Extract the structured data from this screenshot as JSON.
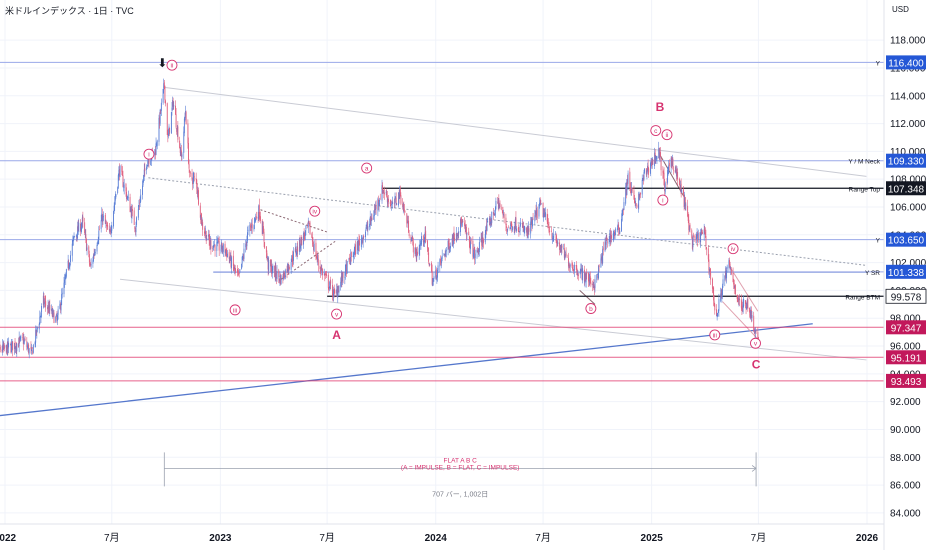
{
  "header": {
    "title": "米ドルインデックス · 1日 · TVC",
    "currency": "USD"
  },
  "colors": {
    "candle_up": "#5b7fd6",
    "candle_down": "#e0607e",
    "wave": "#d63370",
    "hline": "#9aa8e8",
    "trend": "#5577cc",
    "badge_blue": "#2457d6",
    "badge_black": "#131722",
    "badge_red": "#c2185b"
  },
  "chart_data": {
    "type": "candlestick",
    "title": "",
    "xlabel": "",
    "ylabel": "",
    "ylim": [
      83.2,
      120.6
    ],
    "x_ticks": [
      {
        "label": "2022",
        "date": "2022-01-01"
      },
      {
        "label": "7月",
        "date": "2022-07-01"
      },
      {
        "label": "2023",
        "date": "2023-01-01"
      },
      {
        "label": "7月",
        "date": "2023-07-01"
      },
      {
        "label": "2024",
        "date": "2024-01-01"
      },
      {
        "label": "7月",
        "date": "2024-07-01"
      },
      {
        "label": "2025",
        "date": "2025-01-01"
      },
      {
        "label": "7月",
        "date": "2025-07-01"
      },
      {
        "label": "2026",
        "date": "2026-01-01"
      }
    ],
    "y_ticks": [
      "118.000",
      "116.000",
      "114.000",
      "112.000",
      "110.000",
      "108.000",
      "106.000",
      "104.000",
      "102.000",
      "100.000",
      "98.000",
      "96.000",
      "94.000",
      "92.000",
      "90.000",
      "88.000",
      "86.000",
      "84.000"
    ],
    "price_path": [
      [
        "2021-12-05",
        96.2
      ],
      [
        "2021-12-30",
        95.7
      ],
      [
        "2022-02-01",
        96.4
      ],
      [
        "2022-02-15",
        95.4
      ],
      [
        "2022-03-07",
        99.2
      ],
      [
        "2022-03-30",
        97.8
      ],
      [
        "2022-04-28",
        103.8
      ],
      [
        "2022-05-12",
        104.9
      ],
      [
        "2022-05-26",
        101.6
      ],
      [
        "2022-06-15",
        105.3
      ],
      [
        "2022-06-27",
        103.9
      ],
      [
        "2022-07-14",
        108.7
      ],
      [
        "2022-08-10",
        104.6
      ],
      [
        "2022-08-29",
        109.3
      ],
      [
        "2022-09-13",
        110.1
      ],
      [
        "2022-09-28",
        114.8
      ],
      [
        "2022-10-04",
        110.8
      ],
      [
        "2022-10-13",
        113.6
      ],
      [
        "2022-10-27",
        109.5
      ],
      [
        "2022-11-03",
        113.0
      ],
      [
        "2022-11-10",
        108.1
      ],
      [
        "2022-11-21",
        107.9
      ],
      [
        "2022-12-01",
        104.7
      ],
      [
        "2022-12-14",
        103.4
      ],
      [
        "2023-01-10",
        102.9
      ],
      [
        "2023-02-01",
        100.8
      ],
      [
        "2023-02-16",
        104.0
      ],
      [
        "2023-03-08",
        105.8
      ],
      [
        "2023-03-23",
        101.8
      ],
      [
        "2023-04-14",
        100.8
      ],
      [
        "2023-05-31",
        104.6
      ],
      [
        "2023-06-16",
        101.9
      ],
      [
        "2023-07-14",
        99.6
      ],
      [
        "2023-08-10",
        102.3
      ],
      [
        "2023-09-12",
        104.9
      ],
      [
        "2023-10-03",
        107.3
      ],
      [
        "2023-10-20",
        106.0
      ],
      [
        "2023-11-01",
        107.0
      ],
      [
        "2023-11-28",
        102.5
      ],
      [
        "2023-12-13",
        104.0
      ],
      [
        "2023-12-27",
        100.6
      ],
      [
        "2024-01-15",
        102.6
      ],
      [
        "2024-02-14",
        104.9
      ],
      [
        "2024-03-08",
        102.4
      ],
      [
        "2024-04-16",
        106.4
      ],
      [
        "2024-05-01",
        104.5
      ],
      [
        "2024-05-15",
        104.8
      ],
      [
        "2024-06-05",
        104.1
      ],
      [
        "2024-06-26",
        106.1
      ],
      [
        "2024-07-19",
        103.8
      ],
      [
        "2024-08-14",
        102.0
      ],
      [
        "2024-09-27",
        100.4
      ],
      [
        "2024-10-16",
        103.6
      ],
      [
        "2024-11-07",
        104.4
      ],
      [
        "2024-11-22",
        108.1
      ],
      [
        "2024-12-06",
        105.8
      ],
      [
        "2024-12-20",
        108.4
      ],
      [
        "2025-01-13",
        110.0
      ],
      [
        "2025-01-24",
        107.3
      ],
      [
        "2025-02-03",
        109.6
      ],
      [
        "2025-02-26",
        106.3
      ],
      [
        "2025-03-11",
        103.4
      ],
      [
        "2025-03-31",
        104.2
      ],
      [
        "2025-04-21",
        98.0
      ],
      [
        "2025-05-01",
        100.4
      ],
      [
        "2025-05-12",
        101.8
      ],
      [
        "2025-06-01",
        98.7
      ],
      [
        "2025-06-12",
        99.2
      ],
      [
        "2025-06-27",
        96.9
      ],
      [
        "2025-07-01",
        96.4
      ]
    ],
    "horizontal_levels": [
      {
        "name": "Y",
        "value": 116.4,
        "label": "116.400",
        "style": "blue"
      },
      {
        "name": "Y / M Neck",
        "value": 109.33,
        "label": "109.330",
        "style": "blue"
      },
      {
        "name": "Range Top",
        "value": 107.348,
        "label": "107.348",
        "style": "black"
      },
      {
        "name": "Y",
        "value": 103.65,
        "label": "103.650",
        "style": "blue"
      },
      {
        "name": "Y SR",
        "value": 101.338,
        "label": "101.338",
        "style": "blue"
      },
      {
        "name": "Range BTM",
        "value": 99.578,
        "label": "99.578",
        "style": "black"
      },
      {
        "name": "",
        "value": 97.347,
        "label": "97.347",
        "style": "red"
      },
      {
        "name": "",
        "value": 95.191,
        "label": "95.191",
        "style": "red"
      },
      {
        "name": "",
        "value": 93.493,
        "label": "93.493",
        "style": "red"
      }
    ],
    "wave_labels": [
      {
        "text": "i",
        "date": "2022-09-02",
        "price": 109.8
      },
      {
        "text": "ii",
        "date": "2022-10-11",
        "price": 116.2
      },
      {
        "text": "iii",
        "date": "2023-01-26",
        "price": 98.6
      },
      {
        "text": "iv",
        "date": "2023-06-10",
        "price": 105.7
      },
      {
        "text": "v",
        "date": "2023-07-17",
        "price": 98.3
      },
      {
        "text": "a",
        "date": "2023-09-06",
        "price": 108.8
      },
      {
        "text": "b",
        "date": "2024-09-20",
        "price": 98.7
      },
      {
        "text": "c",
        "date": "2025-01-08",
        "price": 111.5
      },
      {
        "text": "ii",
        "date": "2025-01-27",
        "price": 111.2
      },
      {
        "text": "i",
        "date": "2025-01-20",
        "price": 106.5
      },
      {
        "text": "iii",
        "date": "2025-04-18",
        "price": 96.8
      },
      {
        "text": "iv",
        "date": "2025-05-19",
        "price": 103.0
      },
      {
        "text": "v",
        "date": "2025-06-26",
        "price": 96.2
      }
    ],
    "wave_big_labels": [
      {
        "text": "A",
        "date": "2023-07-17",
        "price": 96.5
      },
      {
        "text": "B",
        "date": "2025-01-15",
        "price": 112.9
      },
      {
        "text": "C",
        "date": "2025-06-27",
        "price": 94.4
      }
    ],
    "projection": {
      "title": "FLAT A B C",
      "subtitle": "(A = IMPULSE,  B = FLAT,  C = IMPULSE)",
      "footer": "707 バー, 1,002日",
      "date_from": "2022-09-28",
      "date_to": "2025-06-27",
      "price": 87.2
    },
    "annotation": {
      "text": "⬇",
      "date": "2022-09-28",
      "price": 116.2
    }
  }
}
